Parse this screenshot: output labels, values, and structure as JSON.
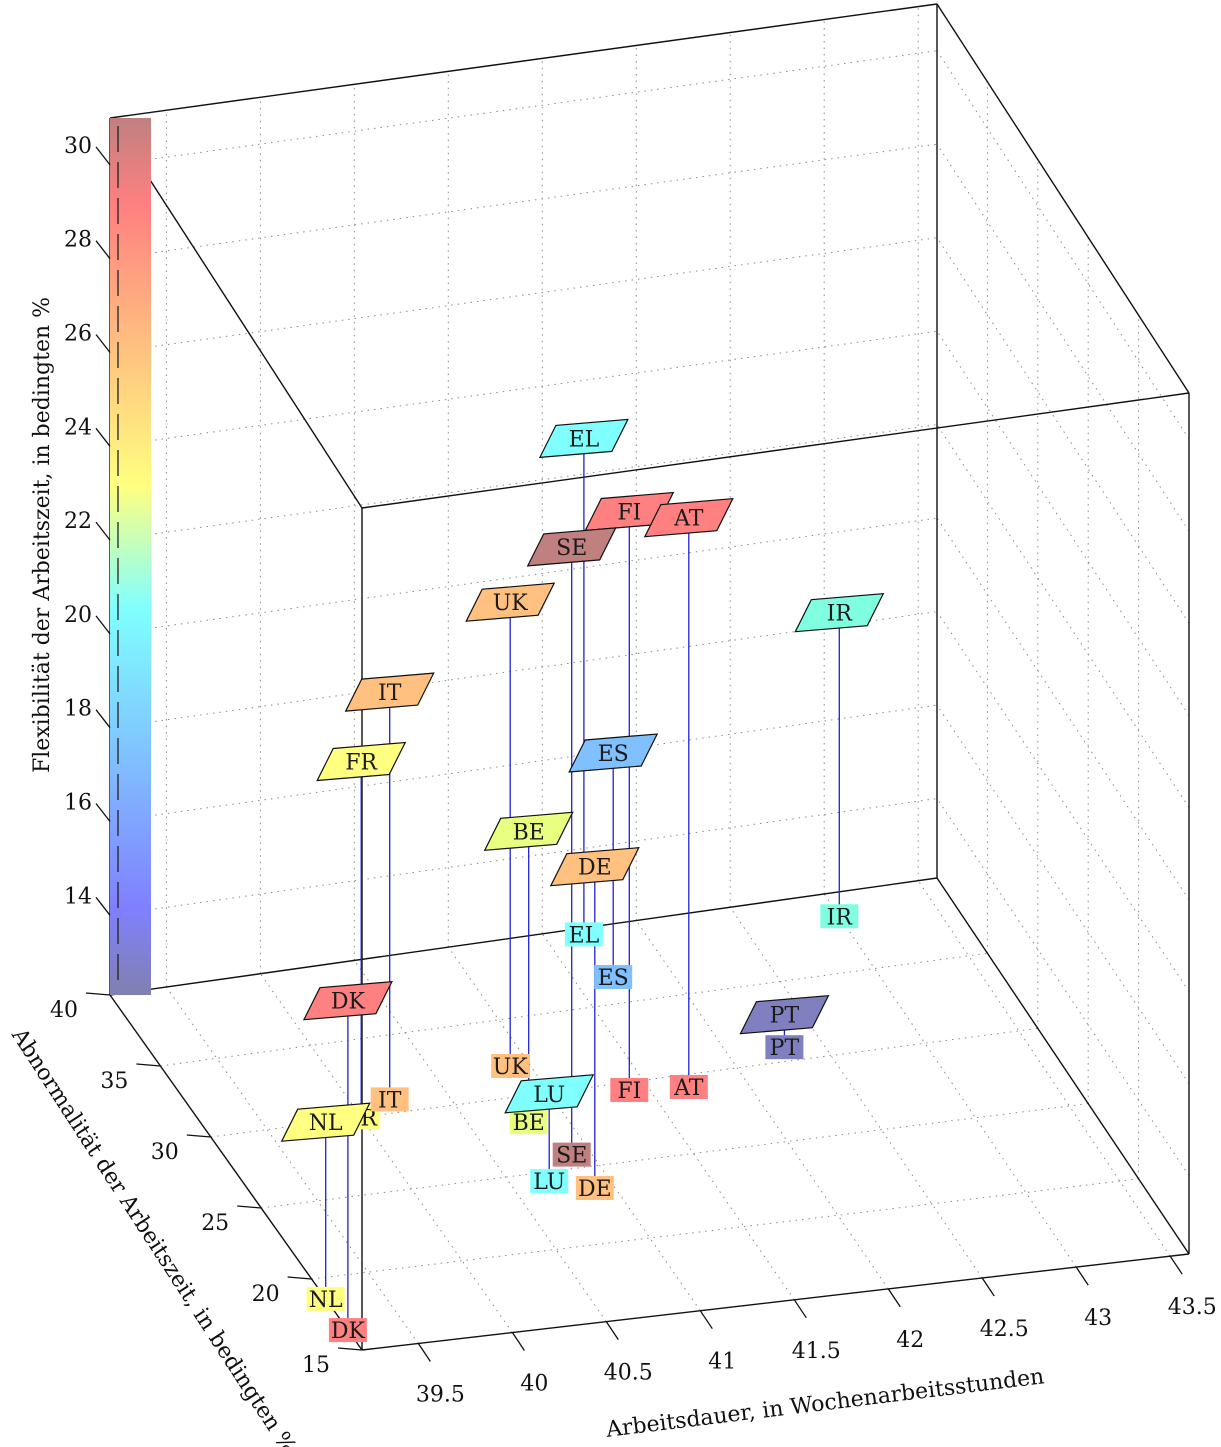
{
  "chart_data": {
    "type": "scatter",
    "xlabel": "Arbeitsdauer, in Wochenarbeitsstunden",
    "ylabel": "Abnormalität der Arbeitszeit, in bedingten %",
    "zlabel": "Flexibilität der Arbeitszeit, in bedingten %",
    "xlim": [
      39.2,
      43.6
    ],
    "ylim": [
      15,
      40
    ],
    "zlim": [
      12.3,
      31
    ],
    "x_ticks": [
      "39.5",
      "40",
      "40.5",
      "41",
      "41.5",
      "42",
      "42.5",
      "43",
      "43.5"
    ],
    "y_ticks": [
      "15",
      "20",
      "25",
      "30",
      "35",
      "40"
    ],
    "z_ticks": [
      "14",
      "16",
      "18",
      "20",
      "22",
      "24",
      "26",
      "28",
      "30"
    ],
    "grid": true,
    "colorbar": "left",
    "colormap": [
      "#8080b8",
      "#8080ff",
      "#80c0ff",
      "#80ffff",
      "#c0ff80",
      "#ffff80",
      "#ffc080",
      "#ff8080",
      "#c08080"
    ],
    "points": [
      {
        "label": "DK",
        "x": 39.2,
        "y": 16.4,
        "z": 19.6,
        "color": "#ff8080"
      },
      {
        "label": "NL",
        "x": 39.2,
        "y": 18.6,
        "z": 16.2,
        "color": "#ffff80"
      },
      {
        "label": "FR",
        "x": 40.0,
        "y": 30.0,
        "z": 20.0,
        "color": "#ffff80"
      },
      {
        "label": "IT",
        "x": 40.2,
        "y": 30.9,
        "z": 21.1,
        "color": "#ffc080"
      },
      {
        "label": "LU",
        "x": 40.7,
        "y": 24.4,
        "z": 14.2,
        "color": "#80ffff"
      },
      {
        "label": "DE",
        "x": 40.9,
        "y": 23.6,
        "z": 19.3,
        "color": "#ffc080"
      },
      {
        "label": "BE",
        "x": 40.8,
        "y": 28.3,
        "z": 18.6,
        "color": "#e8ff80"
      },
      {
        "label": "SE",
        "x": 40.9,
        "y": 25.9,
        "z": 25.5,
        "color": "#c08080"
      },
      {
        "label": "UK",
        "x": 40.9,
        "y": 32.0,
        "z": 22.3,
        "color": "#ffc080"
      },
      {
        "label": "FI",
        "x": 41.4,
        "y": 29.5,
        "z": 24.8,
        "color": "#ff8080"
      },
      {
        "label": "AT",
        "x": 41.7,
        "y": 29.2,
        "z": 24.6,
        "color": "#ff8080"
      },
      {
        "label": "EL",
        "x": 41.7,
        "y": 39.6,
        "z": 22.9,
        "color": "#80ffff"
      },
      {
        "label": "ES",
        "x": 41.7,
        "y": 36.7,
        "z": 17.1,
        "color": "#80c0ff"
      },
      {
        "label": "IR",
        "x": 43.0,
        "y": 38.5,
        "z": 18.8,
        "color": "#80ffe0"
      },
      {
        "label": "PT",
        "x": 42.3,
        "y": 30.9,
        "z": 13.0,
        "color": "#8080c0"
      }
    ]
  }
}
